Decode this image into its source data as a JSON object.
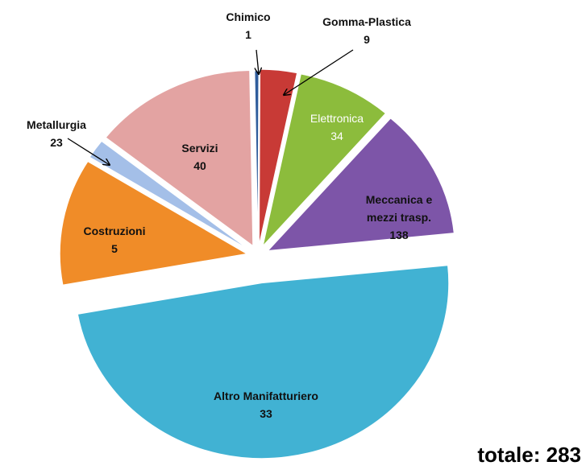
{
  "chart_data": {
    "type": "pie",
    "categories": [
      "Chimico",
      "Gomma-Plastica",
      "Metallurgia",
      "Elettronica",
      "Meccanica e mezzi trasp.",
      "Altro Manifatturiero",
      "Costruzioni",
      "Servizi"
    ],
    "values": [
      1,
      9,
      23,
      34,
      138,
      33,
      5,
      40
    ],
    "colors": [
      "#2f5d9c",
      "#c83a36",
      "#8cbc3c",
      "#7d55a8",
      "#41b2d3",
      "#f08c28",
      "#a4bfe8",
      "#e3a3a2"
    ],
    "annotation": "totale: 283"
  }
}
